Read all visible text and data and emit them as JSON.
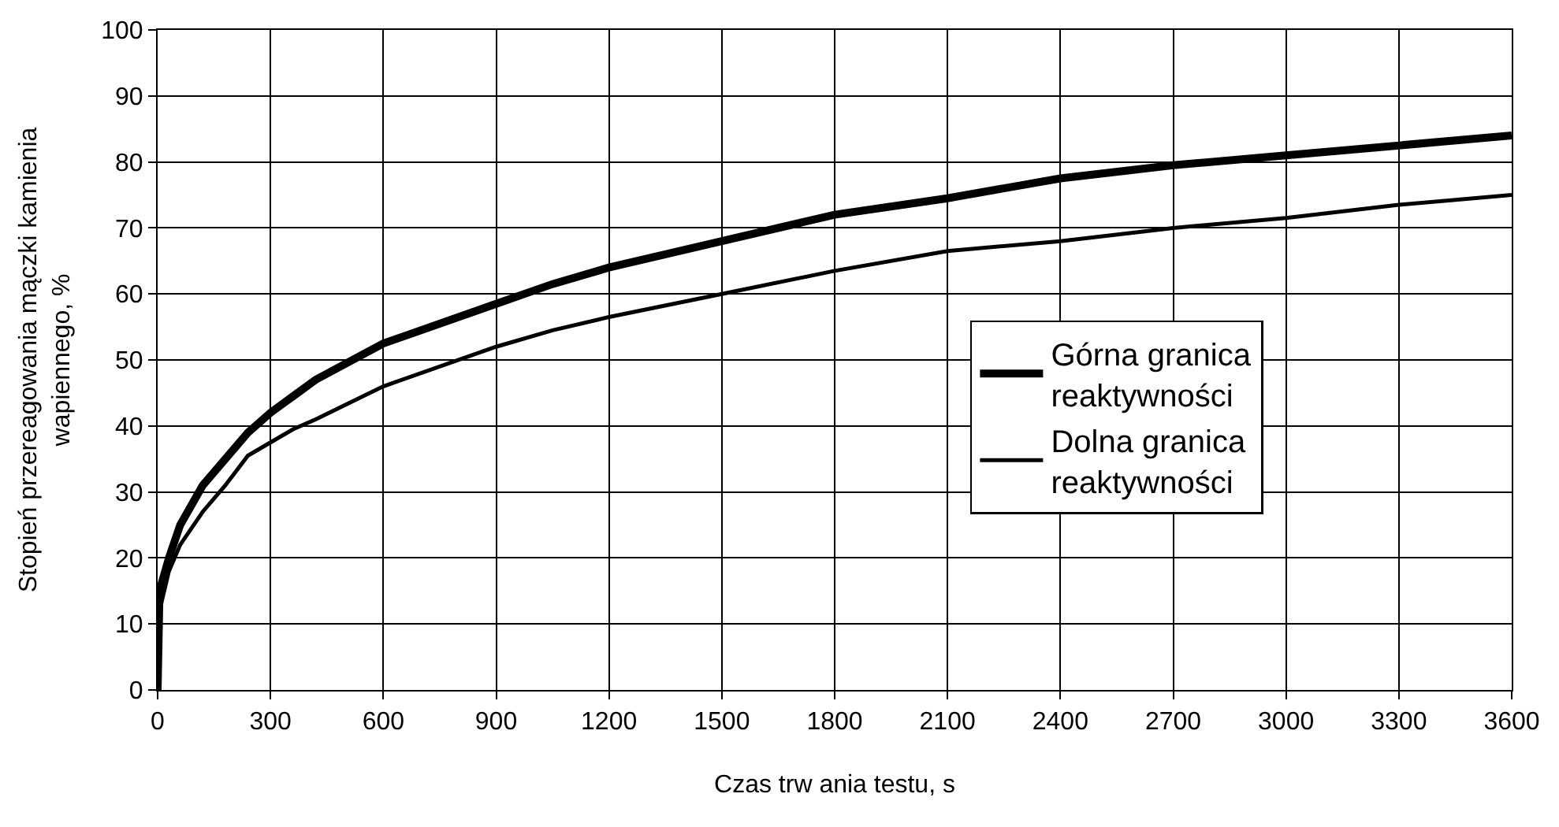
{
  "chart_data": {
    "type": "line",
    "xlabel": "Czas trw ania testu, s",
    "ylabel": "Stopień przereagowania mączki kamienia\nwapiennego, %",
    "x": [
      0,
      5,
      30,
      60,
      120,
      180,
      240,
      300,
      360,
      420,
      600,
      900,
      1050,
      1200,
      1500,
      1800,
      2100,
      2400,
      2700,
      3000,
      3300,
      3600
    ],
    "series": [
      {
        "name": "Górna granica\nreaktywności",
        "color": "#000000",
        "values": [
          0,
          15,
          20,
          25,
          31,
          35,
          39,
          42,
          44.5,
          47,
          52.5,
          58.5,
          61.5,
          64,
          68,
          72,
          74.5,
          77.5,
          79.5,
          81,
          82.5,
          84
        ]
      },
      {
        "name": "Dolna granica\nreaktywności",
        "color": "#000000",
        "values": [
          0,
          12,
          18,
          22,
          27,
          31,
          35.5,
          37.5,
          39.5,
          41,
          46,
          52,
          54.5,
          56.5,
          60,
          63.5,
          66.5,
          68,
          70,
          71.5,
          73.5,
          75
        ]
      }
    ],
    "xlim": [
      0,
      3600
    ],
    "xticks": [
      0,
      300,
      600,
      900,
      1200,
      1500,
      1800,
      2100,
      2400,
      2700,
      3000,
      3300,
      3600
    ],
    "ylim": [
      0,
      100
    ],
    "yticks": [
      0,
      10,
      20,
      30,
      40,
      50,
      60,
      70,
      80,
      90,
      100
    ],
    "grid": true,
    "legend": "right",
    "marker": "none",
    "line_style": "solid"
  }
}
